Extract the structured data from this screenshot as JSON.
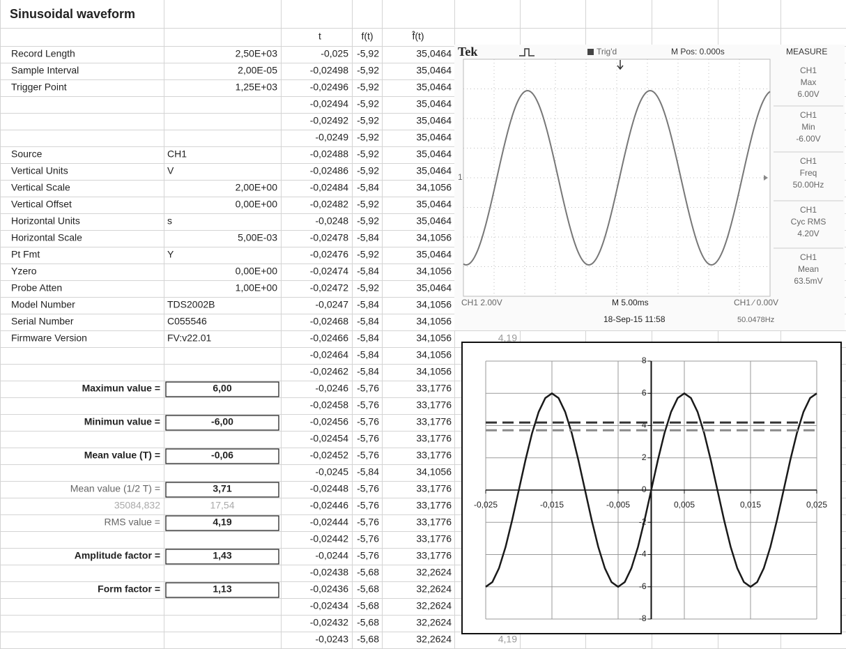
{
  "sheet": {
    "title": "Sinusoidal waveform",
    "columns": [
      "t",
      "f(t)",
      "f̂(t)"
    ],
    "rows": [
      [
        "Record Length",
        "2,50E+03",
        "-0,025",
        "-5,92",
        "35,0464",
        null
      ],
      [
        "Sample Interval",
        "2,00E-05",
        "-0,02498",
        "-5,92",
        "35,0464",
        null
      ],
      [
        "Trigger Point",
        "1,25E+03",
        "-0,02496",
        "-5,92",
        "35,0464",
        null
      ],
      [
        null,
        null,
        "-0,02494",
        "-5,92",
        "35,0464",
        null
      ],
      [
        null,
        null,
        "-0,02492",
        "-5,92",
        "35,0464",
        null
      ],
      [
        null,
        null,
        "-0,0249",
        "-5,92",
        "35,0464",
        null
      ],
      [
        "Source",
        "CH1",
        "-0,02488",
        "-5,92",
        "35,0464",
        null
      ],
      [
        "Vertical Units",
        "V",
        "-0,02486",
        "-5,92",
        "35,0464",
        null
      ],
      [
        "Vertical Scale",
        "2,00E+00",
        "-0,02484",
        "-5,84",
        "34,1056",
        null
      ],
      [
        "Vertical Offset",
        "0,00E+00",
        "-0,02482",
        "-5,92",
        "35,0464",
        null
      ],
      [
        "Horizontal Units",
        "s",
        "-0,0248",
        "-5,92",
        "35,0464",
        null
      ],
      [
        "Horizontal Scale",
        "5,00E-03",
        "-0,02478",
        "-5,84",
        "34,1056",
        null
      ],
      [
        "Pt Fmt",
        "Y",
        "-0,02476",
        "-5,92",
        "35,0464",
        null
      ],
      [
        "Yzero",
        "0,00E+00",
        "-0,02474",
        "-5,84",
        "34,1056",
        null
      ],
      [
        "Probe Atten",
        "1,00E+00",
        "-0,02472",
        "-5,92",
        "35,0464",
        null
      ],
      [
        "Model Number",
        "TDS2002B",
        "-0,0247",
        "-5,84",
        "34,1056",
        null
      ],
      [
        "Serial Number",
        "C055546",
        "-0,02468",
        "-5,84",
        "34,1056",
        null
      ],
      [
        "Firmware Version",
        "FV:v22.01",
        "-0,02466",
        "-5,84",
        "34,1056",
        "4,19"
      ],
      [
        null,
        null,
        "-0,02464",
        "-5,84",
        "34,1056",
        null
      ],
      [
        null,
        null,
        "-0,02462",
        "-5,84",
        "34,1056",
        null
      ],
      [
        "Maximun value =",
        "6,00",
        "-0,0246",
        "-5,76",
        "33,1776",
        null
      ],
      [
        null,
        null,
        "-0,02458",
        "-5,76",
        "33,1776",
        null
      ],
      [
        "Minimun value =",
        "-6,00",
        "-0,02456",
        "-5,76",
        "33,1776",
        null
      ],
      [
        null,
        null,
        "-0,02454",
        "-5,76",
        "33,1776",
        null
      ],
      [
        "Mean value (T) =",
        "-0,06",
        "-0,02452",
        "-5,76",
        "33,1776",
        null
      ],
      [
        null,
        null,
        "-0,0245",
        "-5,84",
        "34,1056",
        null
      ],
      [
        "Mean value (1/2 T) =",
        "3,71",
        "-0,02448",
        "-5,76",
        "33,1776",
        null
      ],
      [
        "35084,832",
        "17,54",
        "-0,02446",
        "-5,76",
        "33,1776",
        null
      ],
      [
        "RMS value =",
        "4,19",
        "-0,02444",
        "-5,76",
        "33,1776",
        null
      ],
      [
        null,
        null,
        "-0,02442",
        "-5,76",
        "33,1776",
        null
      ],
      [
        "Amplitude factor =",
        "1,43",
        "-0,0244",
        "-5,76",
        "33,1776",
        null
      ],
      [
        null,
        null,
        "-0,02438",
        "-5,68",
        "32,2624",
        null
      ],
      [
        "Form factor =",
        "1,13",
        "-0,02436",
        "-5,68",
        "32,2624",
        null
      ],
      [
        null,
        null,
        "-0,02434",
        "-5,68",
        "32,2624",
        null
      ],
      [
        null,
        null,
        "-0,02432",
        "-5,68",
        "32,2624",
        null
      ],
      [
        null,
        null,
        "-0,0243",
        "-5,68",
        "32,2624",
        "4,19"
      ]
    ]
  },
  "scope": {
    "brand": "Tek",
    "trigger": "Trig'd",
    "position": "M Pos: 0.000s",
    "menu": "MEASURE",
    "measurements": [
      {
        "channel": "CH1",
        "label": "Max",
        "value": "6.00V"
      },
      {
        "channel": "CH1",
        "label": "Min",
        "value": "-6.00V"
      },
      {
        "channel": "CH1",
        "label": "Freq",
        "value": "50.00Hz"
      },
      {
        "channel": "CH1",
        "label": "Cyc RMS",
        "value": "4.20V"
      },
      {
        "channel": "CH1",
        "label": "Mean",
        "value": "63.5mV"
      }
    ],
    "marker": "1",
    "channel_scale": "CH1  2.00V",
    "timebase": "M 5.00ms",
    "timestamp": "18-Sep-15 11:58",
    "trigger_level": "CH1 ∕ 0.00V",
    "frequency": "50.0478Hz"
  },
  "chart_data": {
    "type": "line",
    "x": [
      -0.025,
      -0.024,
      -0.023,
      -0.022,
      -0.021,
      -0.02,
      -0.019,
      -0.018,
      -0.017,
      -0.016,
      -0.015,
      -0.014,
      -0.013,
      -0.012,
      -0.011,
      -0.01,
      -0.009,
      -0.008,
      -0.007,
      -0.006,
      -0.005,
      -0.004,
      -0.003,
      -0.002,
      -0.001,
      0,
      0.001,
      0.002,
      0.003,
      0.004,
      0.005,
      0.006,
      0.007,
      0.008,
      0.009,
      0.01,
      0.011,
      0.012,
      0.013,
      0.014,
      0.015,
      0.016,
      0.017,
      0.018,
      0.019,
      0.02,
      0.021,
      0.022,
      0.023,
      0.024,
      0.025
    ],
    "series": [
      {
        "color": "#1a1a1a",
        "line_style": "solid",
        "values": [
          -6,
          -5.71,
          -4.85,
          -3.53,
          -1.85,
          0,
          1.85,
          3.53,
          4.85,
          5.71,
          6,
          5.71,
          4.85,
          3.53,
          1.85,
          0,
          -1.85,
          -3.53,
          -4.85,
          -5.71,
          -6,
          -5.71,
          -4.85,
          -3.53,
          -1.85,
          0,
          1.85,
          3.53,
          4.85,
          5.71,
          6,
          5.71,
          4.85,
          3.53,
          1.85,
          0,
          -1.85,
          -3.53,
          -4.85,
          -5.71,
          -6,
          -5.71,
          -4.85,
          -3.53,
          -1.85,
          0,
          1.85,
          3.53,
          4.85,
          5.71,
          6
        ]
      },
      {
        "color": "#333333",
        "line_style": "dashed",
        "x": [
          -0.025,
          0.025
        ],
        "values": [
          4.19,
          4.19
        ]
      },
      {
        "color": "#8a8a8a",
        "line_style": "dashed",
        "x": [
          -0.025,
          0.025
        ],
        "values": [
          3.71,
          3.71
        ]
      }
    ],
    "xlim": [
      -0.025,
      0.025
    ],
    "ylim": [
      -8,
      8
    ],
    "xticks": [
      {
        "value": -0.025,
        "label": "-0,025"
      },
      {
        "value": -0.015,
        "label": "-0,015"
      },
      {
        "value": -0.005,
        "label": "-0,005"
      },
      {
        "value": 0.005,
        "label": "0,005"
      },
      {
        "value": 0.015,
        "label": "0,015"
      },
      {
        "value": 0.025,
        "label": "0,025"
      }
    ],
    "yticks": [
      -8,
      -6,
      -4,
      -2,
      0,
      2,
      4,
      6,
      8
    ],
    "grid": true
  }
}
